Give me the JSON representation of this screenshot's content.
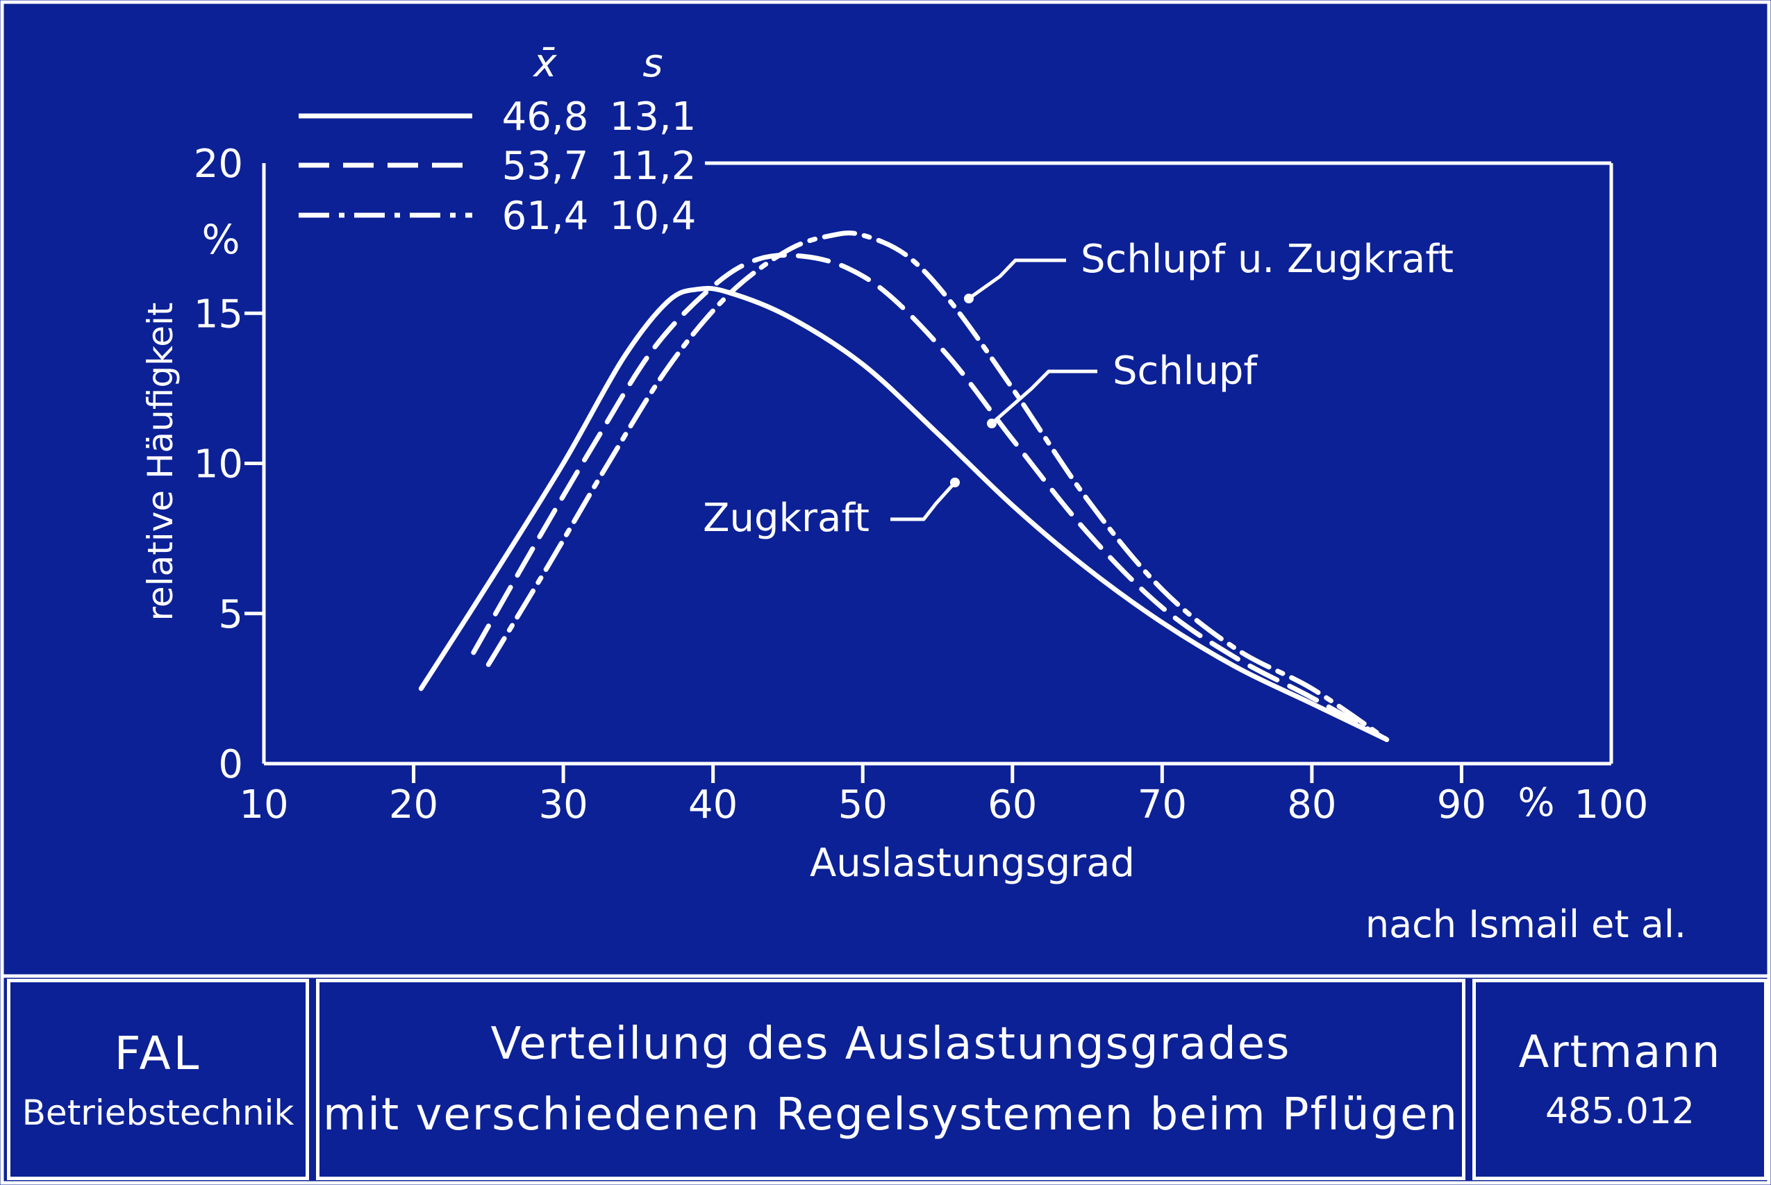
{
  "colors": {
    "background": "#0c2196",
    "ink": "#ffffff"
  },
  "chart_data": {
    "type": "line",
    "title": "",
    "xlabel": "Auslastungsgrad",
    "ylabel": "relative Häufigkeit",
    "x_unit": "%",
    "y_unit": "%",
    "xlim": [
      10,
      100
    ],
    "ylim": [
      0,
      20
    ],
    "x_ticks": [
      "10",
      "20",
      "30",
      "40",
      "50",
      "60",
      "70",
      "80",
      "90",
      "100"
    ],
    "y_ticks": [
      "0",
      "5",
      "10",
      "15",
      "20"
    ],
    "grid": false,
    "legend_header": {
      "mean": "x̄",
      "sd": "s"
    },
    "series": [
      {
        "name": "Zugkraft",
        "style": "solid",
        "mean": "46,8",
        "sd": "13,1",
        "points": [
          [
            20.5,
            2.5
          ],
          [
            25,
            6
          ],
          [
            30,
            10
          ],
          [
            34,
            13.5
          ],
          [
            37,
            15.4
          ],
          [
            39,
            15.8
          ],
          [
            41,
            15.7
          ],
          [
            45,
            14.9
          ],
          [
            50,
            13.3
          ],
          [
            55,
            11
          ],
          [
            60,
            8.6
          ],
          [
            65,
            6.5
          ],
          [
            70,
            4.7
          ],
          [
            75,
            3.2
          ],
          [
            80,
            2
          ],
          [
            85,
            0.8
          ]
        ]
      },
      {
        "name": "Schlupf",
        "style": "dashed",
        "mean": "53,7",
        "sd": "11,2",
        "points": [
          [
            24,
            3.7
          ],
          [
            28,
            7.2
          ],
          [
            32,
            10.6
          ],
          [
            36,
            13.8
          ],
          [
            40,
            15.9
          ],
          [
            43,
            16.8
          ],
          [
            46,
            16.9
          ],
          [
            49,
            16.5
          ],
          [
            52,
            15.5
          ],
          [
            56,
            13.4
          ],
          [
            60,
            10.8
          ],
          [
            65,
            7.7
          ],
          [
            70,
            5.2
          ],
          [
            75,
            3.5
          ],
          [
            80,
            2.2
          ],
          [
            85,
            0.8
          ]
        ]
      },
      {
        "name": "Schlupf u. Zugkraft",
        "style": "dashdot",
        "mean": "61,4",
        "sd": "10,4",
        "points": [
          [
            25,
            3.3
          ],
          [
            29,
            6.6
          ],
          [
            33,
            10
          ],
          [
            37,
            13.2
          ],
          [
            41,
            15.6
          ],
          [
            45,
            17.1
          ],
          [
            48,
            17.6
          ],
          [
            50,
            17.6
          ],
          [
            53,
            16.9
          ],
          [
            56,
            15.3
          ],
          [
            60,
            12.5
          ],
          [
            65,
            8.8
          ],
          [
            70,
            5.8
          ],
          [
            75,
            3.8
          ],
          [
            80,
            2.5
          ],
          [
            85,
            0.8
          ]
        ]
      }
    ],
    "annotations": [
      "Schlupf u. Zugkraft",
      "Schlupf",
      "Zugkraft"
    ],
    "source": "nach Ismail et al."
  },
  "footer": {
    "institute": "FAL",
    "department": "Betriebstechnik",
    "title_line1": "Verteilung des Auslastungsgrades",
    "title_line2": "mit verschiedenen Regelsystemen beim Pflügen",
    "author": "Artmann",
    "doc_number": "485.012"
  }
}
